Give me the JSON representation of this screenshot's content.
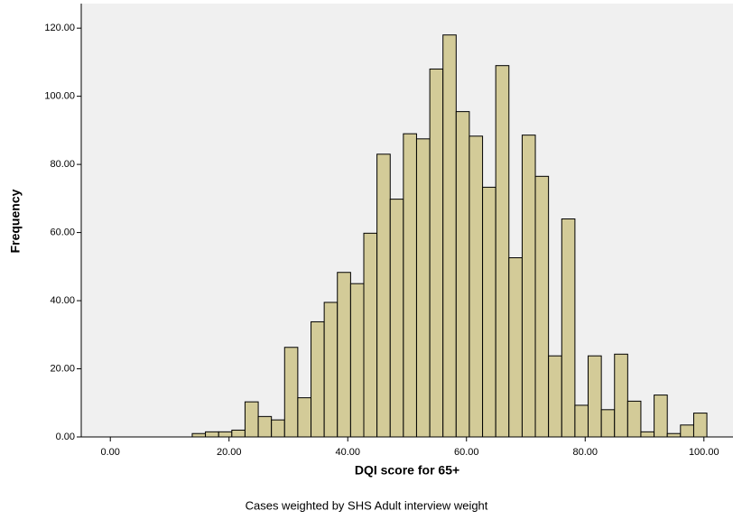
{
  "chart_data": {
    "type": "histogram",
    "xlabel": "DQI score for 65+",
    "ylabel": "Frequency",
    "note": "Cases weighted by SHS Adult interview weight",
    "bins": [
      13.8,
      16.02,
      18.25,
      20.47,
      22.69,
      24.92,
      27.14,
      29.36,
      31.58,
      33.81,
      36.03,
      38.25,
      40.48,
      42.7,
      44.92,
      47.15,
      49.37,
      51.59,
      53.82,
      56.04,
      58.26,
      60.48,
      62.71,
      64.93,
      67.15,
      69.38,
      71.6,
      73.82,
      76.05,
      78.27,
      80.49,
      82.72,
      84.94,
      87.16,
      89.38,
      91.61,
      93.83,
      96.05,
      98.28,
      100.5
    ],
    "values": [
      1,
      1.5,
      1.5,
      2,
      10.3,
      6,
      5,
      26.3,
      11.5,
      33.8,
      39.5,
      48.3,
      45,
      59.8,
      83,
      69.8,
      89,
      87.5,
      108,
      118,
      95.5,
      88.3,
      73.3,
      109,
      52.6,
      88.6,
      76.5,
      23.8,
      64,
      9.3,
      23.8,
      8,
      24.3,
      10.5,
      1.5,
      12.3,
      1,
      3.5,
      7
    ],
    "color": "#d3cb98",
    "xlim": [
      -4.9,
      104.9
    ],
    "ylim": [
      0,
      127.2
    ],
    "xticks": [
      {
        "value": 0,
        "label": "0.00"
      },
      {
        "value": 20,
        "label": "20.00"
      },
      {
        "value": 40,
        "label": "40.00"
      },
      {
        "value": 60,
        "label": "60.00"
      },
      {
        "value": 80,
        "label": "80.00"
      },
      {
        "value": 100,
        "label": "100.00"
      }
    ],
    "yticks": [
      {
        "value": 0,
        "label": "0.00"
      },
      {
        "value": 20,
        "label": "20.00"
      },
      {
        "value": 40,
        "label": "40.00"
      },
      {
        "value": 60,
        "label": "60.00"
      },
      {
        "value": 80,
        "label": "80.00"
      },
      {
        "value": 100,
        "label": "100.00"
      },
      {
        "value": 120,
        "label": "120.00"
      }
    ]
  }
}
